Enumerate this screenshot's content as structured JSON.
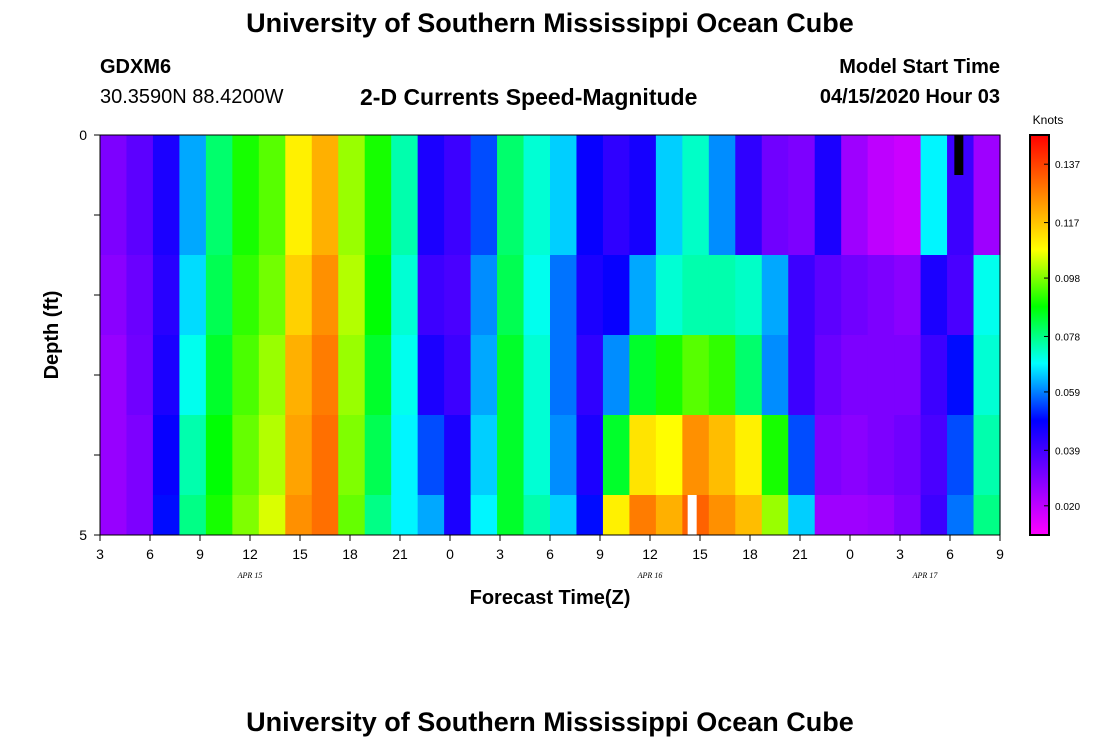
{
  "header": {
    "title": "University of Southern Mississippi Ocean Cube",
    "station_id": "GDXM6",
    "station_coords": "30.3590N 88.4200W",
    "model_label": "Model Start Time",
    "model_time": "04/15/2020 Hour 03"
  },
  "footer": {
    "title": "University of Southern Mississippi Ocean Cube"
  },
  "chart_data": {
    "type": "heatmap",
    "title": "2-D Currents Speed-Magnitude",
    "xlabel": "Forecast Time(Z)",
    "ylabel": "Depth (ft)",
    "x_hours_start": 0,
    "x_hours_end": 54,
    "x_ticks": [
      "3",
      "6",
      "9",
      "12",
      "15",
      "18",
      "21",
      "0",
      "3",
      "6",
      "9",
      "12",
      "15",
      "18",
      "21",
      "0",
      "3",
      "6",
      "9"
    ],
    "day_labels": [
      {
        "text": "APR  15",
        "hour": 9
      },
      {
        "text": "APR  16",
        "hour": 33
      },
      {
        "text": "APR  17",
        "hour": 49.5
      }
    ],
    "y_ticks": [
      "0",
      "5"
    ],
    "ylim": [
      0,
      5
    ],
    "depth_rows": 5,
    "colorbar": {
      "unit": "Knots",
      "labels": [
        "0.137",
        "0.117",
        "0.098",
        "0.078",
        "0.059",
        "0.039",
        "0.020"
      ],
      "min": 0.01,
      "max": 0.147,
      "palette": [
        "#ff00ff",
        "#8000ff",
        "#0000ff",
        "#00ffff",
        "#00ff00",
        "#ffff00",
        "#ff8000",
        "#ff0000"
      ]
    },
    "speed_knots": [
      [
        0.03,
        0.035,
        0.045,
        0.062,
        0.08,
        0.09,
        0.095,
        0.11,
        0.12,
        0.1,
        0.09,
        0.075,
        0.045,
        0.04,
        0.055,
        0.08,
        0.072,
        0.065,
        0.048,
        0.042,
        0.046,
        0.065,
        0.073,
        0.06,
        0.042,
        0.032,
        0.03,
        0.045,
        0.025,
        0.02,
        0.018,
        0.068,
        0.04,
        0.025
      ],
      [
        0.028,
        0.033,
        0.043,
        0.066,
        0.082,
        0.092,
        0.097,
        0.115,
        0.125,
        0.102,
        0.088,
        0.072,
        0.04,
        0.038,
        0.06,
        0.082,
        0.07,
        0.058,
        0.045,
        0.048,
        0.062,
        0.072,
        0.075,
        0.075,
        0.073,
        0.062,
        0.04,
        0.035,
        0.032,
        0.03,
        0.028,
        0.045,
        0.038,
        0.07
      ],
      [
        0.026,
        0.032,
        0.045,
        0.07,
        0.085,
        0.094,
        0.1,
        0.12,
        0.128,
        0.1,
        0.085,
        0.07,
        0.045,
        0.04,
        0.062,
        0.085,
        0.072,
        0.058,
        0.042,
        0.06,
        0.085,
        0.09,
        0.095,
        0.092,
        0.08,
        0.06,
        0.04,
        0.033,
        0.03,
        0.03,
        0.03,
        0.04,
        0.05,
        0.072
      ],
      [
        0.026,
        0.03,
        0.048,
        0.075,
        0.088,
        0.096,
        0.102,
        0.122,
        0.13,
        0.098,
        0.082,
        0.068,
        0.055,
        0.045,
        0.065,
        0.085,
        0.072,
        0.06,
        0.045,
        0.085,
        0.112,
        0.108,
        0.125,
        0.118,
        0.11,
        0.09,
        0.055,
        0.03,
        0.028,
        0.03,
        0.032,
        0.038,
        0.055,
        0.075
      ],
      [
        0.026,
        0.03,
        0.05,
        0.078,
        0.09,
        0.098,
        0.105,
        0.125,
        0.13,
        0.096,
        0.078,
        0.068,
        0.062,
        0.045,
        0.068,
        0.085,
        0.075,
        0.065,
        0.05,
        0.11,
        0.128,
        0.12,
        0.132,
        0.125,
        0.118,
        0.1,
        0.065,
        0.025,
        0.025,
        0.026,
        0.03,
        0.04,
        0.058,
        0.078
      ]
    ],
    "missing_cells": [
      {
        "row": 0,
        "hour": 51.5
      },
      {
        "row": 4,
        "hour": 35.5
      }
    ]
  }
}
